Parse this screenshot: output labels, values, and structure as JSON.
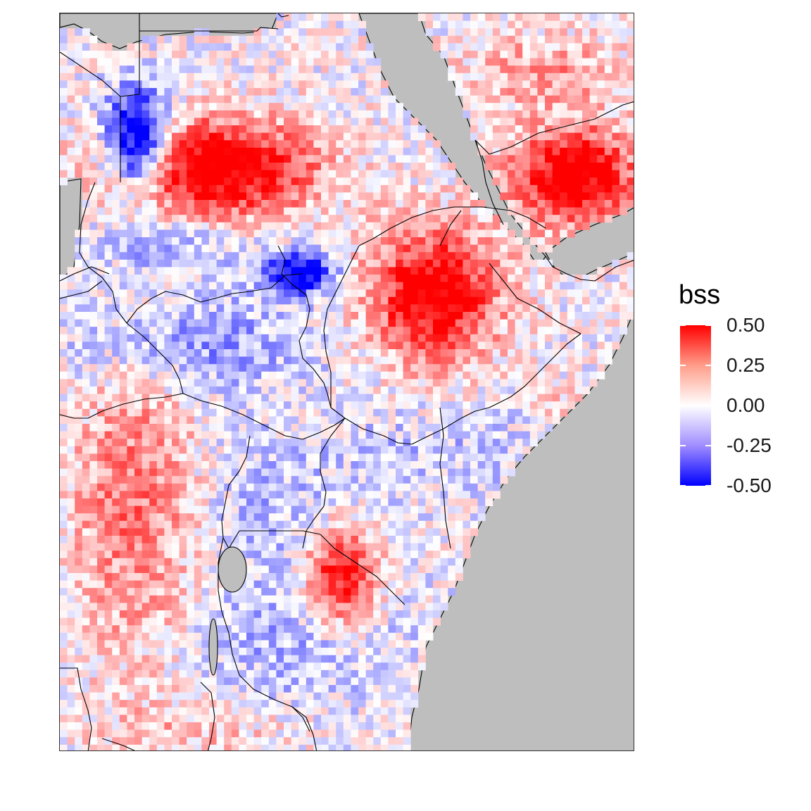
{
  "map": {
    "colors": {
      "land_background": "#bebebe",
      "panel_border": "#333333",
      "border_line": "#000000"
    }
  },
  "legend": {
    "title": "bss",
    "scale": {
      "min": -0.5,
      "max": 0.5,
      "high_color": "#ff0000",
      "mid_color": "#ffffff",
      "low_color": "#0000ff"
    },
    "ticks": [
      {
        "value": 0.5,
        "label": "0.50"
      },
      {
        "value": 0.25,
        "label": "0.25"
      },
      {
        "value": 0.0,
        "label": "0.00"
      },
      {
        "value": -0.25,
        "label": "-0.25"
      },
      {
        "value": -0.5,
        "label": "-0.50"
      }
    ]
  }
}
